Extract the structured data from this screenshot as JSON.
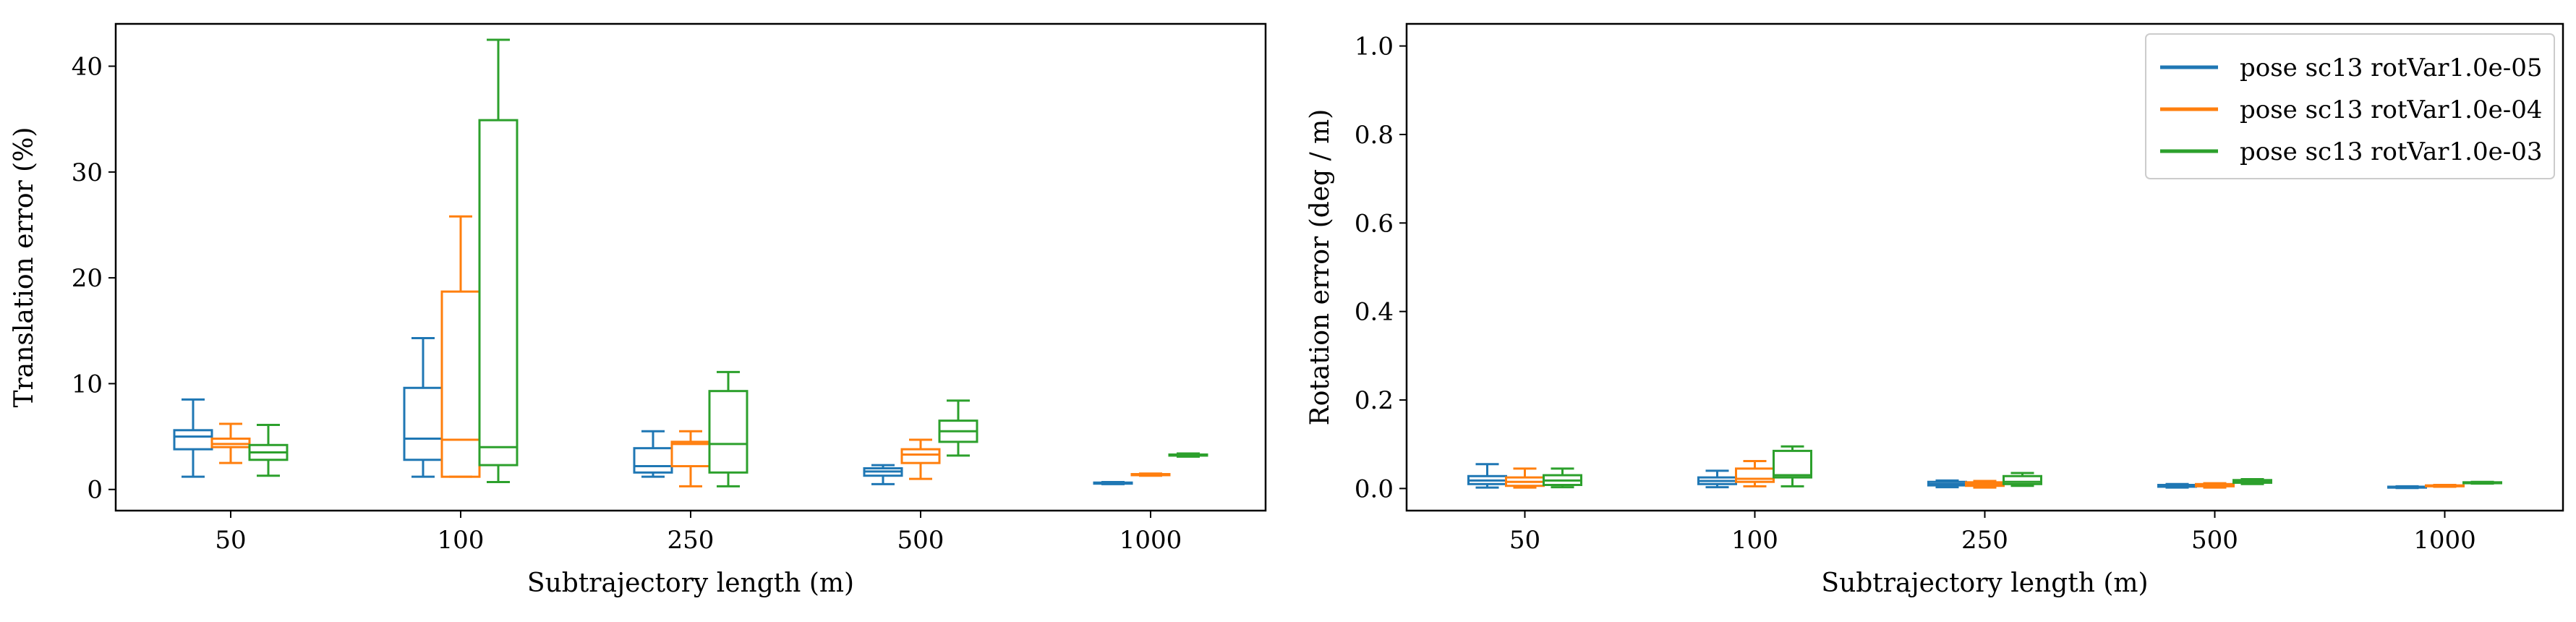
{
  "chart_data": [
    {
      "type": "box",
      "xlabel": "Subtrajectory length (m)",
      "ylabel": "Translation error (%)",
      "categories": [
        "50",
        "100",
        "250",
        "500",
        "1000"
      ],
      "ylim": [
        -2,
        44
      ],
      "yticks": [
        0,
        10,
        20,
        30,
        40
      ],
      "grid": false,
      "legend": "none",
      "series": [
        {
          "name": "pose sc13 rotVar1.0e-05",
          "color": "#1f77b4",
          "boxes": [
            {
              "whislo": 1.2,
              "q1": 3.8,
              "med": 5.0,
              "q3": 5.6,
              "whishi": 8.5
            },
            {
              "whislo": 1.2,
              "q1": 2.8,
              "med": 4.8,
              "q3": 9.6,
              "whishi": 14.3
            },
            {
              "whislo": 1.2,
              "q1": 1.6,
              "med": 2.2,
              "q3": 3.9,
              "whishi": 5.5
            },
            {
              "whislo": 0.5,
              "q1": 1.3,
              "med": 1.7,
              "q3": 2.0,
              "whishi": 2.3
            },
            {
              "whislo": 0.5,
              "q1": 0.55,
              "med": 0.6,
              "q3": 0.65,
              "whishi": 0.7
            }
          ]
        },
        {
          "name": "pose sc13 rotVar1.0e-04",
          "color": "#ff7f0e",
          "boxes": [
            {
              "whislo": 2.5,
              "q1": 4.0,
              "med": 4.3,
              "q3": 4.8,
              "whishi": 6.2
            },
            {
              "whislo": 1.2,
              "q1": 1.2,
              "med": 4.7,
              "q3": 18.7,
              "whishi": 25.8
            },
            {
              "whislo": 0.3,
              "q1": 2.2,
              "med": 4.3,
              "q3": 4.5,
              "whishi": 5.5
            },
            {
              "whislo": 1.0,
              "q1": 2.5,
              "med": 3.3,
              "q3": 3.8,
              "whishi": 4.7
            },
            {
              "whislo": 1.3,
              "q1": 1.35,
              "med": 1.4,
              "q3": 1.45,
              "whishi": 1.5
            }
          ]
        },
        {
          "name": "pose sc13 rotVar1.0e-03",
          "color": "#2ca02c",
          "boxes": [
            {
              "whislo": 1.3,
              "q1": 2.8,
              "med": 3.5,
              "q3": 4.2,
              "whishi": 6.1
            },
            {
              "whislo": 0.7,
              "q1": 2.3,
              "med": 4.0,
              "q3": 34.9,
              "whishi": 42.5
            },
            {
              "whislo": 0.3,
              "q1": 1.6,
              "med": 4.3,
              "q3": 9.3,
              "whishi": 11.1
            },
            {
              "whislo": 3.2,
              "q1": 4.5,
              "med": 5.5,
              "q3": 6.5,
              "whishi": 8.4
            },
            {
              "whislo": 3.1,
              "q1": 3.2,
              "med": 3.25,
              "q3": 3.3,
              "whishi": 3.4
            }
          ]
        }
      ]
    },
    {
      "type": "box",
      "xlabel": "Subtrajectory length (m)",
      "ylabel": "Rotation error (deg / m)",
      "categories": [
        "50",
        "100",
        "250",
        "500",
        "1000"
      ],
      "ylim": [
        -0.05,
        1.05
      ],
      "yticks": [
        "0.0",
        "0.2",
        "0.4",
        "0.6",
        "0.8",
        "1.0"
      ],
      "grid": false,
      "legend": "top-right",
      "series": [
        {
          "name": "pose sc13 rotVar1.0e-05",
          "color": "#1f77b4",
          "boxes": [
            {
              "whislo": 0.002,
              "q1": 0.01,
              "med": 0.018,
              "q3": 0.028,
              "whishi": 0.055
            },
            {
              "whislo": 0.003,
              "q1": 0.01,
              "med": 0.017,
              "q3": 0.025,
              "whishi": 0.04
            },
            {
              "whislo": 0.003,
              "q1": 0.007,
              "med": 0.01,
              "q3": 0.015,
              "whishi": 0.018
            },
            {
              "whislo": 0.002,
              "q1": 0.004,
              "med": 0.006,
              "q3": 0.008,
              "whishi": 0.01
            },
            {
              "whislo": 0.001,
              "q1": 0.002,
              "med": 0.003,
              "q3": 0.004,
              "whishi": 0.005
            }
          ]
        },
        {
          "name": "pose sc13 rotVar1.0e-04",
          "color": "#ff7f0e",
          "boxes": [
            {
              "whislo": 0.002,
              "q1": 0.006,
              "med": 0.015,
              "q3": 0.025,
              "whishi": 0.045
            },
            {
              "whislo": 0.005,
              "q1": 0.015,
              "med": 0.022,
              "q3": 0.045,
              "whishi": 0.062
            },
            {
              "whislo": 0.002,
              "q1": 0.006,
              "med": 0.01,
              "q3": 0.014,
              "whishi": 0.017
            },
            {
              "whislo": 0.002,
              "q1": 0.005,
              "med": 0.008,
              "q3": 0.01,
              "whishi": 0.012
            },
            {
              "whislo": 0.004,
              "q1": 0.005,
              "med": 0.006,
              "q3": 0.007,
              "whishi": 0.008
            }
          ]
        },
        {
          "name": "pose sc13 rotVar1.0e-03",
          "color": "#2ca02c",
          "boxes": [
            {
              "whislo": 0.003,
              "q1": 0.008,
              "med": 0.018,
              "q3": 0.03,
              "whishi": 0.045
            },
            {
              "whislo": 0.005,
              "q1": 0.025,
              "med": 0.03,
              "q3": 0.085,
              "whishi": 0.095
            },
            {
              "whislo": 0.006,
              "q1": 0.01,
              "med": 0.015,
              "q3": 0.028,
              "whishi": 0.035
            },
            {
              "whislo": 0.01,
              "q1": 0.013,
              "med": 0.016,
              "q3": 0.019,
              "whishi": 0.021
            },
            {
              "whislo": 0.011,
              "q1": 0.012,
              "med": 0.013,
              "q3": 0.014,
              "whishi": 0.015
            }
          ]
        }
      ]
    }
  ]
}
